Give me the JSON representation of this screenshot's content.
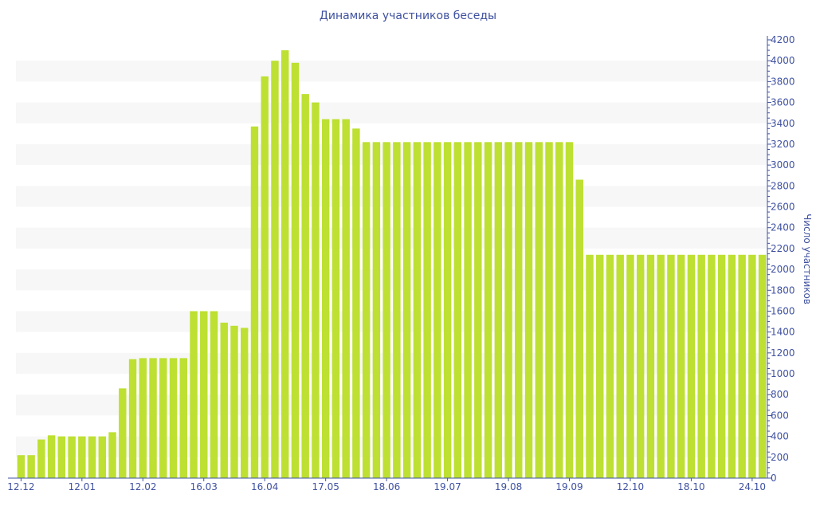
{
  "chart_data": {
    "type": "bar",
    "title": "Динамика участников беседы",
    "xlabel": "",
    "ylabel": "Число участников",
    "ylim": [
      0,
      4200
    ],
    "y_axis_side": "right",
    "y_ticks": [
      0,
      200,
      400,
      600,
      800,
      1000,
      1200,
      1400,
      1600,
      1800,
      2000,
      2200,
      2400,
      2600,
      2800,
      3000,
      3200,
      3400,
      3600,
      3800,
      4000,
      4200
    ],
    "grid": "alternating horizontal bands",
    "bar_color": "#bde032",
    "band_color": "#f7f7f7",
    "text_color": "#3f51a0",
    "categories": [
      "12.12",
      "",
      "",
      "",
      "",
      "",
      "12.01",
      "",
      "",
      "",
      "",
      "",
      "12.02",
      "",
      "",
      "",
      "",
      "",
      "16.03",
      "",
      "",
      "",
      "",
      "",
      "16.04",
      "",
      "",
      "",
      "",
      "",
      "17.05",
      "",
      "",
      "",
      "",
      "",
      "18.06",
      "",
      "",
      "",
      "",
      "",
      "19.07",
      "",
      "",
      "",
      "",
      "",
      "19.08",
      "",
      "",
      "",
      "",
      "",
      "19.09",
      "",
      "",
      "",
      "",
      "",
      "12.10",
      "",
      "",
      "",
      "",
      "",
      "18.10",
      "",
      "",
      "",
      "",
      "",
      "24.10",
      ""
    ],
    "values": [
      220,
      220,
      370,
      410,
      400,
      400,
      400,
      400,
      400,
      440,
      860,
      1140,
      1150,
      1150,
      1150,
      1150,
      1150,
      1600,
      1600,
      1600,
      1490,
      1460,
      1440,
      3370,
      3850,
      4000,
      4100,
      3980,
      3680,
      3600,
      3440,
      3440,
      3440,
      3350,
      3220,
      3220,
      3220,
      3220,
      3220,
      3220,
      3220,
      3220,
      3220,
      3220,
      3220,
      3220,
      3220,
      3220,
      3220,
      3220,
      3220,
      3220,
      3220,
      3220,
      3220,
      2860,
      2140,
      2140,
      2140,
      2140,
      2140,
      2140,
      2140,
      2140,
      2140,
      2140,
      2140,
      2140,
      2140,
      2140,
      2140,
      2140,
      2140,
      2140
    ]
  }
}
